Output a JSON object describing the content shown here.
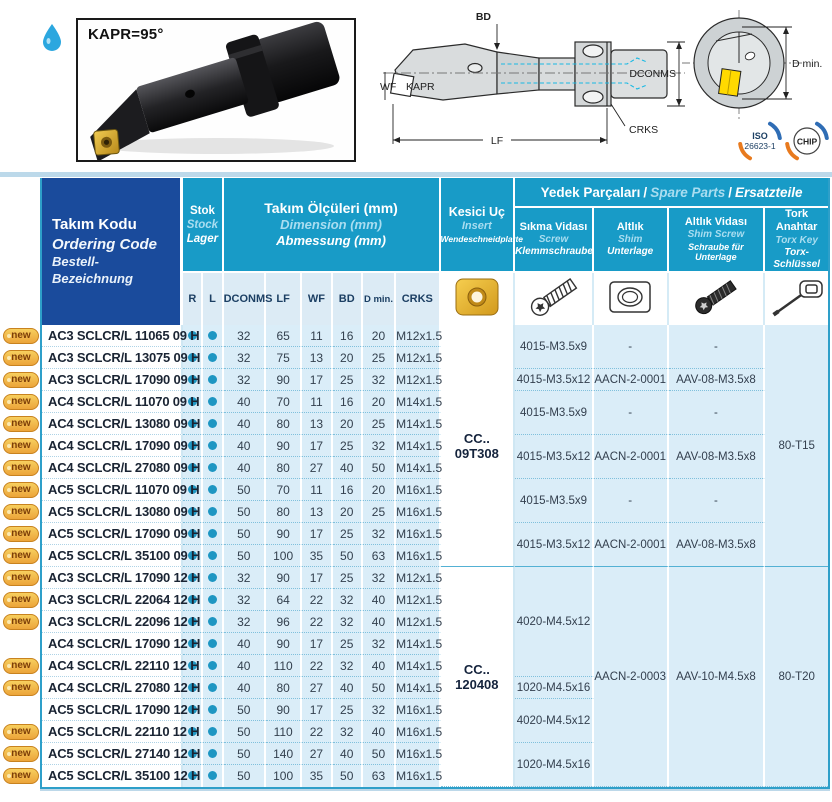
{
  "top": {
    "photo_label": "KAPR=95°",
    "diagram": {
      "bd": "BD",
      "dconms": "DCONMS",
      "wf": "WF",
      "kapr": "KAPR",
      "lf": "LF",
      "crks": "CRKS",
      "d_min": "D min."
    },
    "badges": {
      "iso_line1": "ISO",
      "iso_line2": "26623-1",
      "chip": "CHIP"
    }
  },
  "table": {
    "header": {
      "sep": "/",
      "ordering_code": {
        "tr": "Takım Kodu",
        "en": "Ordering Code",
        "de": "Bestell-Bezeichnung"
      },
      "stock": {
        "tr": "Stok",
        "en": "Stock",
        "de": "Lager"
      },
      "dimensions": {
        "tr": "Takım Ölçüleri (mm)",
        "en": "Dimension (mm)",
        "de": "Abmessung (mm)"
      },
      "insert": {
        "tr": "Kesici Uç",
        "en": "Insert",
        "de": "Wendeschneidplatte"
      },
      "spare_parts": {
        "tr": "Yedek Parçaları",
        "en": "Spare Parts",
        "de": "Ersatzteile"
      },
      "screw": {
        "tr": "Sıkma Vidası",
        "en": "Screw",
        "de": "Klemmschraube"
      },
      "shim": {
        "tr": "Altlık",
        "en": "Shim",
        "de": "Unterlage"
      },
      "shim_screw": {
        "tr": "Altlık Vidası",
        "en": "Shim Screw",
        "de": "Schraube für Unterlage"
      },
      "torx_key": {
        "tr": "Tork Anahtar",
        "en": "Torx Key",
        "de": "Torx-Schlüssel"
      },
      "columns": [
        "R",
        "L",
        "DCONMS",
        "LF",
        "WF",
        "BD",
        "D min.",
        "CRKS"
      ]
    },
    "new_badge": "new",
    "rows": [
      {
        "new": true,
        "code": "AC3 SCLCR/L 11065 09 H",
        "r": true,
        "l": true,
        "dconms": "32",
        "lf": "65",
        "wf": "11",
        "bd": "16",
        "dmin": "20",
        "crks": "M12x1.5"
      },
      {
        "new": true,
        "code": "AC3 SCLCR/L 13075 09 H",
        "r": true,
        "l": true,
        "dconms": "32",
        "lf": "75",
        "wf": "13",
        "bd": "20",
        "dmin": "25",
        "crks": "M12x1.5"
      },
      {
        "new": true,
        "code": "AC3 SCLCR/L 17090 09 H",
        "r": true,
        "l": true,
        "dconms": "32",
        "lf": "90",
        "wf": "17",
        "bd": "25",
        "dmin": "32",
        "crks": "M12x1.5"
      },
      {
        "new": true,
        "code": "AC4 SCLCR/L 11070 09 H",
        "r": true,
        "l": true,
        "dconms": "40",
        "lf": "70",
        "wf": "11",
        "bd": "16",
        "dmin": "20",
        "crks": "M14x1.5"
      },
      {
        "new": true,
        "code": "AC4 SCLCR/L 13080 09 H",
        "r": true,
        "l": true,
        "dconms": "40",
        "lf": "80",
        "wf": "13",
        "bd": "20",
        "dmin": "25",
        "crks": "M14x1.5"
      },
      {
        "new": true,
        "code": "AC4 SCLCR/L 17090 09 H",
        "r": true,
        "l": true,
        "dconms": "40",
        "lf": "90",
        "wf": "17",
        "bd": "25",
        "dmin": "32",
        "crks": "M14x1.5"
      },
      {
        "new": true,
        "code": "AC4 SCLCR/L 27080 09 H",
        "r": true,
        "l": true,
        "dconms": "40",
        "lf": "80",
        "wf": "27",
        "bd": "40",
        "dmin": "50",
        "crks": "M14x1.5"
      },
      {
        "new": true,
        "code": "AC5 SCLCR/L 11070 09 H",
        "r": true,
        "l": true,
        "dconms": "50",
        "lf": "70",
        "wf": "11",
        "bd": "16",
        "dmin": "20",
        "crks": "M16x1.5"
      },
      {
        "new": true,
        "code": "AC5 SCLCR/L 13080 09 H",
        "r": true,
        "l": true,
        "dconms": "50",
        "lf": "80",
        "wf": "13",
        "bd": "20",
        "dmin": "25",
        "crks": "M16x1.5"
      },
      {
        "new": true,
        "code": "AC5 SCLCR/L 17090 09 H",
        "r": true,
        "l": true,
        "dconms": "50",
        "lf": "90",
        "wf": "17",
        "bd": "25",
        "dmin": "32",
        "crks": "M16x1.5"
      },
      {
        "new": true,
        "code": "AC5 SCLCR/L 35100 09 H",
        "r": true,
        "l": true,
        "dconms": "50",
        "lf": "100",
        "wf": "35",
        "bd": "50",
        "dmin": "63",
        "crks": "M16x1.5"
      },
      {
        "new": true,
        "code": "AC3 SCLCR/L 17090 12 H",
        "r": true,
        "l": true,
        "dconms": "32",
        "lf": "90",
        "wf": "17",
        "bd": "25",
        "dmin": "32",
        "crks": "M12x1.5"
      },
      {
        "new": true,
        "code": "AC3 SCLCR/L 22064 12 H",
        "r": true,
        "l": true,
        "dconms": "32",
        "lf": "64",
        "wf": "22",
        "bd": "32",
        "dmin": "40",
        "crks": "M12x1.5"
      },
      {
        "new": true,
        "code": "AC3 SCLCR/L 22096 12 H",
        "r": true,
        "l": true,
        "dconms": "32",
        "lf": "96",
        "wf": "22",
        "bd": "32",
        "dmin": "40",
        "crks": "M12x1.5"
      },
      {
        "new": false,
        "code": "AC4 SCLCR/L 17090 12 H",
        "r": true,
        "l": true,
        "dconms": "40",
        "lf": "90",
        "wf": "17",
        "bd": "25",
        "dmin": "32",
        "crks": "M14x1.5"
      },
      {
        "new": true,
        "code": "AC4 SCLCR/L 22110 12 H",
        "r": true,
        "l": true,
        "dconms": "40",
        "lf": "110",
        "wf": "22",
        "bd": "32",
        "dmin": "40",
        "crks": "M14x1.5"
      },
      {
        "new": true,
        "code": "AC4 SCLCR/L 27080 12 H",
        "r": true,
        "l": true,
        "dconms": "40",
        "lf": "80",
        "wf": "27",
        "bd": "40",
        "dmin": "50",
        "crks": "M14x1.5"
      },
      {
        "new": false,
        "code": "AC5 SCLCR/L 17090 12 H",
        "r": true,
        "l": true,
        "dconms": "50",
        "lf": "90",
        "wf": "17",
        "bd": "25",
        "dmin": "32",
        "crks": "M16x1.5"
      },
      {
        "new": true,
        "code": "AC5 SCLCR/L 22110 12 H",
        "r": true,
        "l": true,
        "dconms": "50",
        "lf": "110",
        "wf": "22",
        "bd": "32",
        "dmin": "40",
        "crks": "M16x1.5"
      },
      {
        "new": true,
        "code": "AC5 SCLCR/L 27140 12 H",
        "r": true,
        "l": true,
        "dconms": "50",
        "lf": "140",
        "wf": "27",
        "bd": "40",
        "dmin": "50",
        "crks": "M16x1.5"
      },
      {
        "new": true,
        "code": "AC5 SCLCR/L 35100 12 H",
        "r": true,
        "l": true,
        "dconms": "50",
        "lf": "100",
        "wf": "35",
        "bd": "50",
        "dmin": "63",
        "crks": "M16x1.5"
      }
    ],
    "merged": {
      "insert": [
        {
          "span": 11,
          "text": "CC.. 09T308"
        },
        {
          "span": 10,
          "text": "CC.. 120408"
        }
      ],
      "screw": [
        {
          "span": 2,
          "text": "4015-M3.5x9"
        },
        {
          "span": 1,
          "text": "4015-M3.5x12"
        },
        {
          "span": 2,
          "text": "4015-M3.5x9"
        },
        {
          "span": 2,
          "text": "4015-M3.5x12"
        },
        {
          "span": 2,
          "text": "4015-M3.5x9"
        },
        {
          "span": 2,
          "text": "4015-M3.5x12"
        },
        {
          "span": 5,
          "text": "4020-M4.5x12"
        },
        {
          "span": 1,
          "text": "1020-M4.5x16"
        },
        {
          "span": 2,
          "text": "4020-M4.5x12"
        },
        {
          "span": 2,
          "text": "1020-M4.5x16"
        }
      ],
      "shim": [
        {
          "span": 2,
          "text": "-"
        },
        {
          "span": 1,
          "text": "AACN-2-0001"
        },
        {
          "span": 2,
          "text": "-"
        },
        {
          "span": 2,
          "text": "AACN-2-0001"
        },
        {
          "span": 2,
          "text": "-"
        },
        {
          "span": 2,
          "text": "AACN-2-0001"
        },
        {
          "span": 10,
          "text": "AACN-2-0003"
        }
      ],
      "shim_screw": [
        {
          "span": 2,
          "text": "-"
        },
        {
          "span": 1,
          "text": "AAV-08-M3.5x8"
        },
        {
          "span": 2,
          "text": "-"
        },
        {
          "span": 2,
          "text": "AAV-08-M3.5x8"
        },
        {
          "span": 2,
          "text": "-"
        },
        {
          "span": 2,
          "text": "AAV-08-M3.5x8"
        },
        {
          "span": 10,
          "text": "AAV-10-M4.5x8"
        }
      ],
      "torx": [
        {
          "span": 11,
          "text": "80-T15"
        },
        {
          "span": 10,
          "text": "80-T20"
        }
      ]
    }
  }
}
